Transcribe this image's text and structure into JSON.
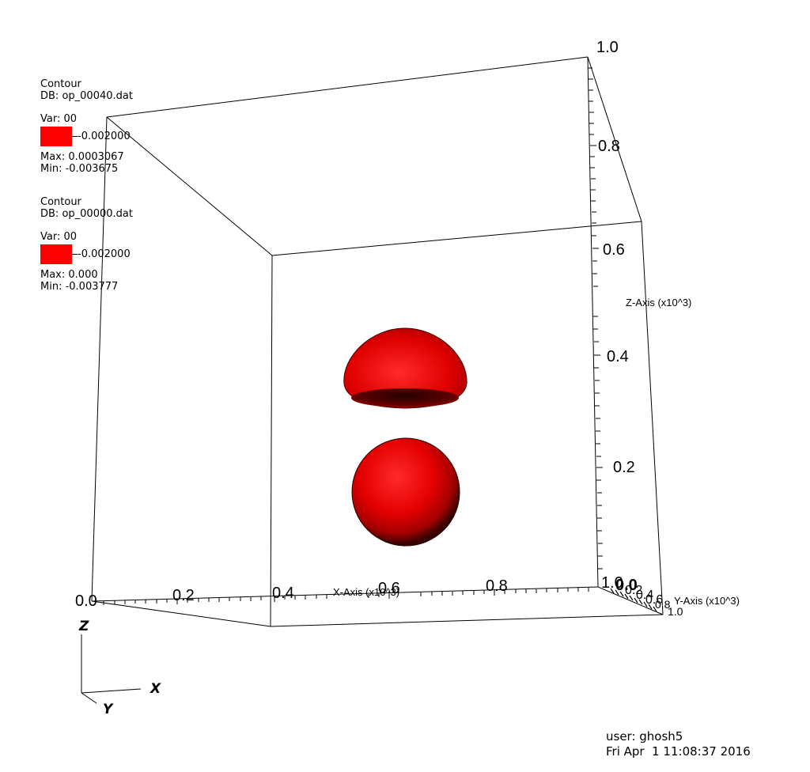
{
  "legends": [
    {
      "plot_type": "Contour",
      "db": "DB: op_00040.dat",
      "var": "Var: 00",
      "level_label": "-0.002000",
      "max": "Max:  0.0003067",
      "min": "Min: -0.003675",
      "color": "#ff0000"
    },
    {
      "plot_type": "Contour",
      "db": "DB: op_00000.dat",
      "var": "Var: 00",
      "level_label": "-0.002000",
      "max": "Max:  0.000",
      "min": "Min: -0.003777",
      "color": "#ff0000"
    }
  ],
  "axes": {
    "x": {
      "title": "X-Axis (x10^3)",
      "tick_labels": [
        "0.0",
        "0.2",
        "0.4",
        "0.6",
        "0.8",
        "1.0"
      ]
    },
    "y": {
      "title": "Y-Axis (x10^3)",
      "tick_labels": [
        "0.0",
        "0.2",
        "0.4",
        "0.6",
        "0.8",
        "1.0"
      ]
    },
    "z": {
      "title": "Z-Axis (x10^3)",
      "tick_labels": [
        "0.2",
        "0.4",
        "0.6",
        "0.8",
        "1.0"
      ]
    }
  },
  "triad": {
    "x": "X",
    "y": "Y",
    "z": "Z"
  },
  "user_info": {
    "user": "user: ghosh5",
    "datetime": "Fri Apr  1 11:08:37 2016"
  }
}
